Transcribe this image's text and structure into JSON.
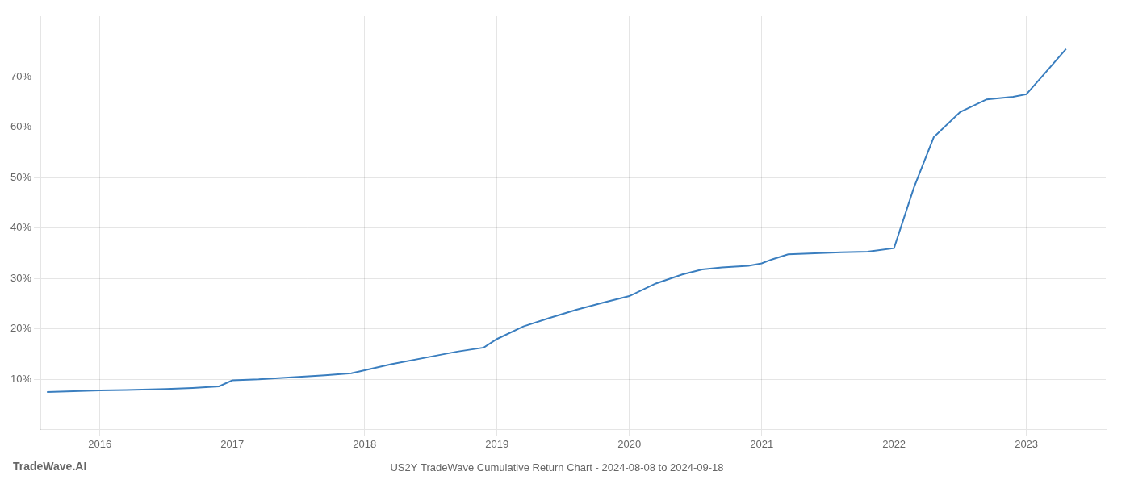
{
  "chart_data": {
    "type": "line",
    "title": "US2Y TradeWave Cumulative Return Chart - 2024-08-08 to 2024-09-18",
    "annotations": [
      "TradeWave.AI"
    ],
    "color": "#3a7ebf",
    "grid": true,
    "xlim": [
      2015.55,
      2023.6
    ],
    "xticks": [
      2016,
      2017,
      2018,
      2019,
      2020,
      2021,
      2022,
      2023
    ],
    "ylim": [
      0.0,
      0.82
    ],
    "yticks": [
      {
        "value": 0.1,
        "label": "10%"
      },
      {
        "value": 0.2,
        "label": "20%"
      },
      {
        "value": 0.3,
        "label": "30%"
      },
      {
        "value": 0.4,
        "label": "40%"
      },
      {
        "value": 0.5,
        "label": "50%"
      },
      {
        "value": 0.6,
        "label": "60%"
      },
      {
        "value": 0.7,
        "label": "70%"
      }
    ],
    "x": [
      2015.6,
      2015.75,
      2016.0,
      2016.2,
      2016.5,
      2016.7,
      2016.9,
      2017.0,
      2017.2,
      2017.5,
      2017.7,
      2017.9,
      2018.0,
      2018.2,
      2018.5,
      2018.7,
      2018.9,
      2019.0,
      2019.2,
      2019.4,
      2019.6,
      2019.8,
      2020.0,
      2020.2,
      2020.4,
      2020.55,
      2020.7,
      2020.9,
      2021.0,
      2021.08,
      2021.2,
      2021.4,
      2021.6,
      2021.8,
      2022.0,
      2022.15,
      2022.3,
      2022.5,
      2022.7,
      2022.9,
      2023.0,
      2023.15,
      2023.3
    ],
    "values": [
      0.075,
      0.076,
      0.078,
      0.079,
      0.081,
      0.083,
      0.086,
      0.098,
      0.1,
      0.105,
      0.108,
      0.112,
      0.118,
      0.13,
      0.145,
      0.155,
      0.163,
      0.18,
      0.205,
      0.222,
      0.238,
      0.252,
      0.265,
      0.29,
      0.308,
      0.318,
      0.322,
      0.325,
      0.33,
      0.338,
      0.348,
      0.35,
      0.352,
      0.353,
      0.36,
      0.48,
      0.58,
      0.63,
      0.655,
      0.66,
      0.665,
      0.71,
      0.755
    ]
  }
}
